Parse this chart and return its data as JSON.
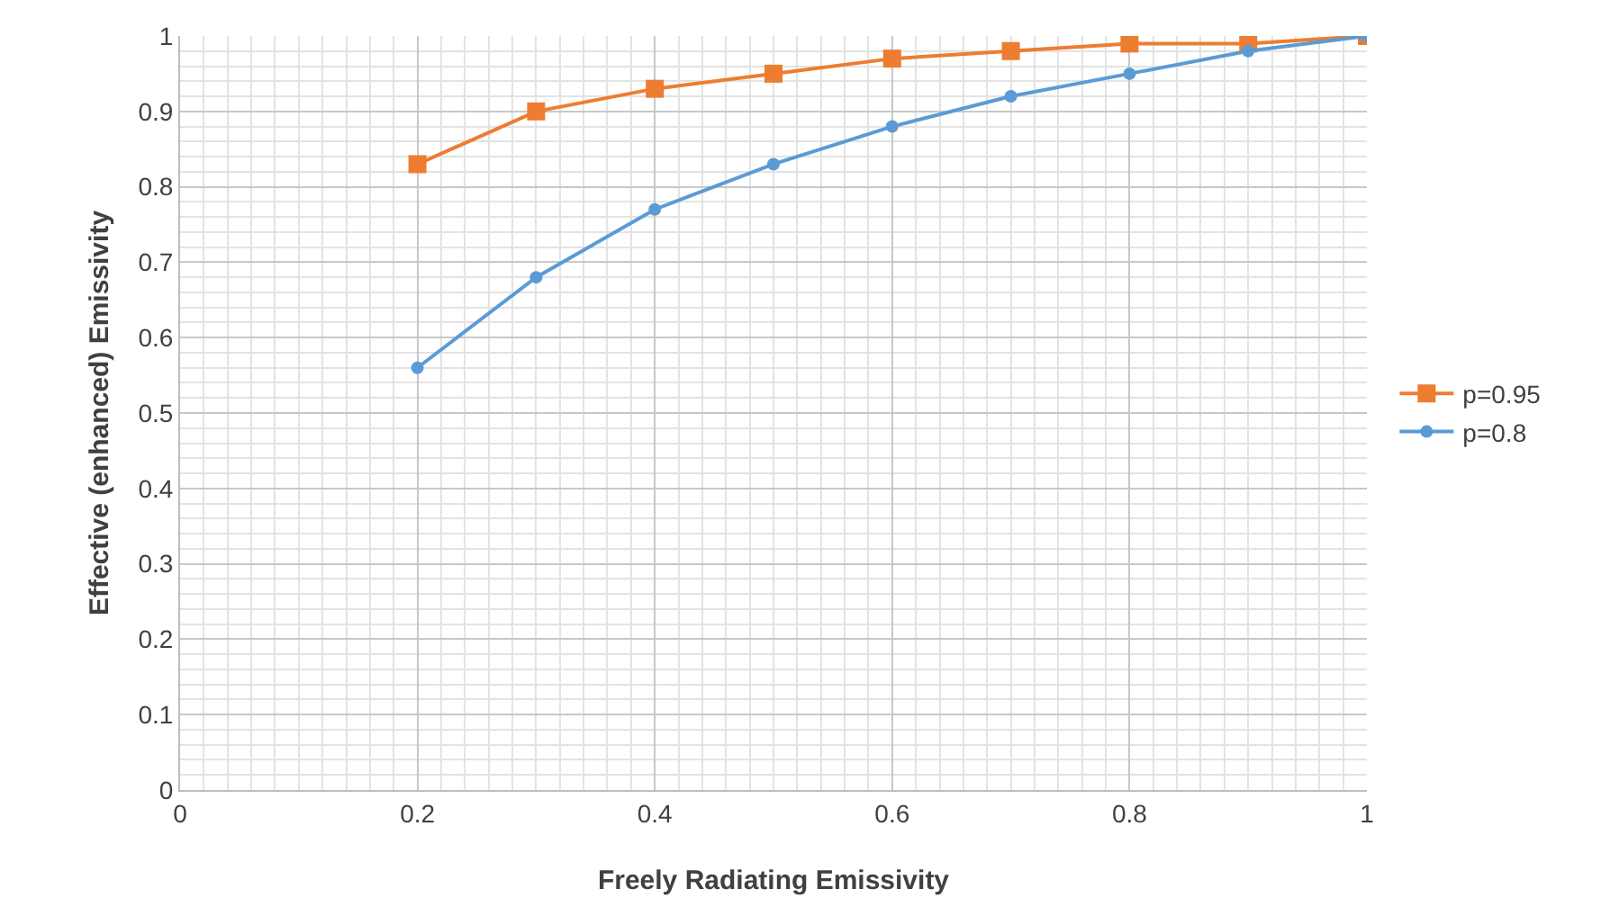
{
  "chart_data": {
    "type": "line",
    "xlabel": "Freely Radiating Emissivity",
    "ylabel": "Effective (enhanced) Emissivity",
    "x": [
      0.2,
      0.3,
      0.4,
      0.5,
      0.6,
      0.7,
      0.8,
      0.9,
      1
    ],
    "series": [
      {
        "name": "p=0.95",
        "color": "#ed7d31",
        "marker": "square",
        "values": [
          0.83,
          0.9,
          0.93,
          0.95,
          0.97,
          0.98,
          0.99,
          0.99,
          1
        ]
      },
      {
        "name": "p=0.8",
        "color": "#5b9bd5",
        "marker": "circle",
        "values": [
          0.56,
          0.68,
          0.77,
          0.83,
          0.88,
          0.92,
          0.95,
          0.98,
          1
        ]
      }
    ],
    "xlim": [
      0,
      1
    ],
    "xticks": [
      0,
      0.2,
      0.4,
      0.6,
      0.8,
      1
    ],
    "ylim": [
      0,
      1
    ],
    "yticks": [
      0,
      0.1,
      0.2,
      0.3,
      0.4,
      0.5,
      0.6,
      0.7,
      0.8,
      0.9,
      1
    ],
    "grid": true,
    "legend": "right",
    "line_style": "solid"
  }
}
